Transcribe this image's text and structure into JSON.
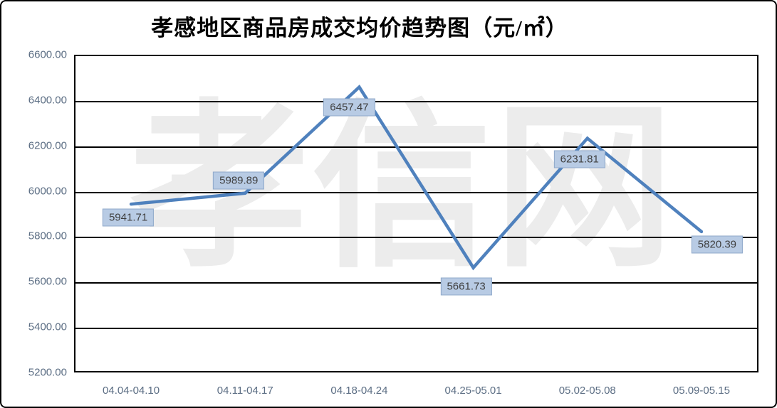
{
  "title": "孝感地区商品房成交均价趋势图（元/㎡）",
  "watermark": "孝信网",
  "colors": {
    "line": "#4f81bd",
    "label_fill": "#b8cbe4",
    "label_border": "#8fa9ca",
    "axis_text": "#5c6e84",
    "gridline": "#000000",
    "plot_border": "#000000",
    "watermark": "#ececec",
    "title_text": "#000000",
    "label_text": "#3f3f3f"
  },
  "chart_data": {
    "type": "line",
    "title": "孝感地区商品房成交均价趋势图（元/㎡）",
    "categories": [
      "04.04-04.10",
      "04.11-04.17",
      "04.18-04.24",
      "04.25-05.01",
      "05.02-05.08",
      "05.09-05.15"
    ],
    "values": [
      5941.71,
      5989.89,
      6457.47,
      5661.73,
      6231.81,
      5820.39
    ],
    "data_labels": [
      "5941.71",
      "5989.89",
      "6457.47",
      "5661.73",
      "6231.81",
      "5820.39"
    ],
    "xlabel": "",
    "ylabel": "",
    "ylim": [
      5200,
      6600
    ],
    "ytick_step": 200,
    "yticks": [
      "6600.00",
      "6400.00",
      "6200.00",
      "6000.00",
      "5800.00",
      "5600.00",
      "5400.00",
      "5200.00"
    ],
    "grid": true,
    "legend": false
  }
}
